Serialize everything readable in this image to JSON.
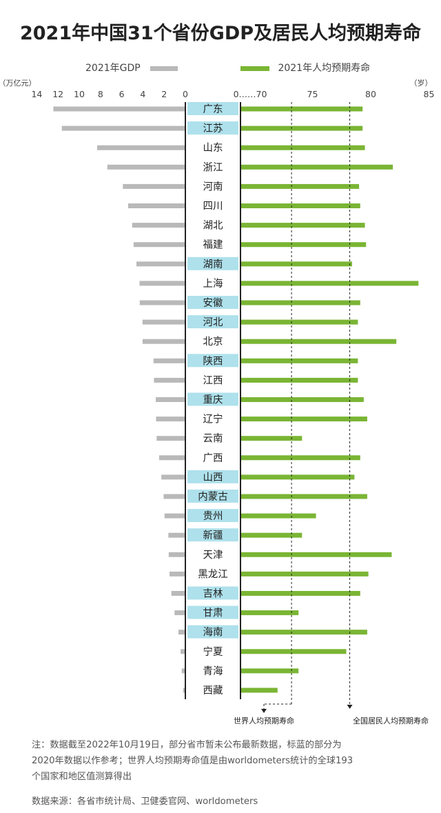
{
  "title": "2021年中国31个省份GDP及居民人均预期寿命",
  "legend": {
    "gdp_label": "2021年GDP",
    "life_label": "2021年人均预期寿命"
  },
  "colors": {
    "gdp": "#b9b9b9",
    "life": "#7ab534",
    "highlight": "#aee1ec",
    "axis": "#222222"
  },
  "notes": {
    "line1": "注：数据截至2022年10月19日，部分省市暂未公布最新数据，标蓝的部分为",
    "line2": "2020年数据以作参考；世界人均预期寿命值是由worldometers统计的全球193",
    "line3": "个国家和地区值测算得出",
    "source": "数据来源：各省市统计局、卫健委官网、worldometers"
  },
  "chart_data": {
    "type": "bar",
    "layout": "butterfly",
    "title": "2021年中国31个省份GDP及居民人均预期寿命",
    "gdp_axis": {
      "label": "（万亿元）",
      "ticks": [
        "14",
        "12",
        "10",
        "8",
        "6",
        "4",
        "2",
        "0"
      ],
      "range": [
        0,
        14
      ],
      "direction": "leftward"
    },
    "life_axis": {
      "label": "（岁）",
      "ticks": [
        "0……70",
        "75",
        "80",
        "85"
      ],
      "range": [
        70,
        85
      ],
      "direction": "rightward"
    },
    "reference_lines": [
      {
        "label": "世界人均预期寿命",
        "value": 73.2
      },
      {
        "label": "全国居民人均预期寿命",
        "value": 78.2
      }
    ],
    "categories": [
      "广东",
      "江苏",
      "山东",
      "浙江",
      "河南",
      "四川",
      "湖北",
      "福建",
      "湖南",
      "上海",
      "安徽",
      "河北",
      "北京",
      "陕西",
      "江西",
      "重庆",
      "辽宁",
      "云南",
      "广西",
      "山西",
      "内蒙古",
      "贵州",
      "新疆",
      "天津",
      "黑龙江",
      "吉林",
      "甘肃",
      "海南",
      "宁夏",
      "青海",
      "西藏"
    ],
    "highlighted": [
      true,
      true,
      false,
      false,
      false,
      false,
      false,
      false,
      true,
      false,
      true,
      true,
      false,
      true,
      false,
      true,
      false,
      false,
      false,
      true,
      true,
      true,
      true,
      false,
      false,
      true,
      true,
      true,
      false,
      false,
      false
    ],
    "series": [
      {
        "name": "2021年GDP",
        "unit": "万亿元",
        "values": [
          12.44,
          11.64,
          8.31,
          7.35,
          5.89,
          5.39,
          5.01,
          4.88,
          4.61,
          4.32,
          4.3,
          4.04,
          4.03,
          3.0,
          2.96,
          2.79,
          2.76,
          2.71,
          2.47,
          2.26,
          2.05,
          1.96,
          1.6,
          1.57,
          1.49,
          1.32,
          1.02,
          0.65,
          0.45,
          0.34,
          0.21
        ]
      },
      {
        "name": "2021年人均预期寿命",
        "unit": "岁",
        "values": [
          79.3,
          79.3,
          79.5,
          81.9,
          79.0,
          79.1,
          79.5,
          79.6,
          78.4,
          84.1,
          79.1,
          78.9,
          82.2,
          78.9,
          78.9,
          79.4,
          79.7,
          74.1,
          79.1,
          78.6,
          79.7,
          75.3,
          74.1,
          81.8,
          79.8,
          79.1,
          73.8,
          79.7,
          77.9,
          73.8,
          72.0
        ]
      }
    ]
  }
}
